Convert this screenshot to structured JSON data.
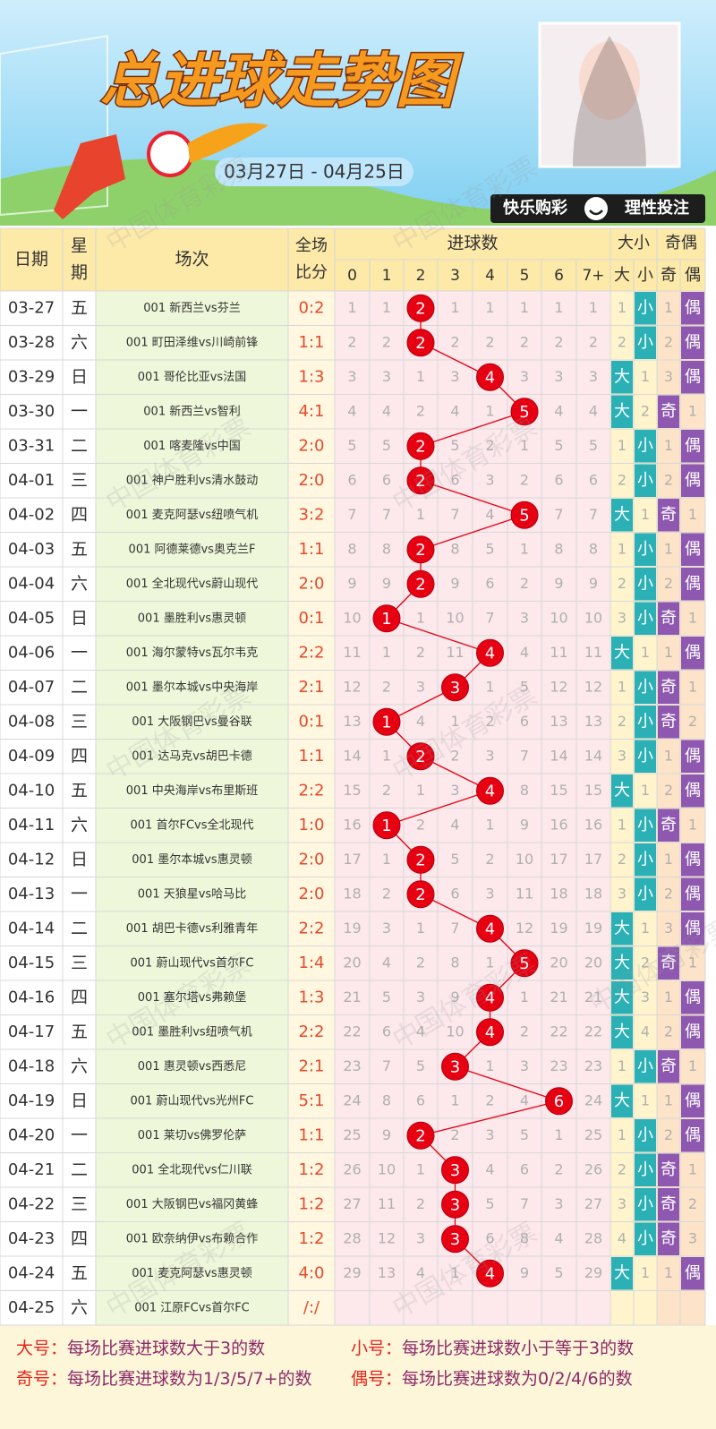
{
  "header": {
    "title": "总进球走势图",
    "date_range": "03月27日 - 04月25日",
    "slogan_left": "快乐购彩",
    "slogan_right": "理性投注",
    "watermark": "中国体育彩票"
  },
  "table": {
    "columns": {
      "date": "日期",
      "weekday": [
        "星",
        "期"
      ],
      "match": "场次",
      "score": [
        "全场",
        "比分"
      ],
      "goals": "进球数",
      "goal_counts": [
        "0",
        "1",
        "2",
        "3",
        "4",
        "5",
        "6",
        "7+"
      ],
      "big_small": "大小",
      "odd_even": "奇偶",
      "big_small_sub": [
        "大",
        "小"
      ],
      "odd_even_sub": [
        "奇",
        "偶"
      ]
    },
    "rows": [
      {
        "date": "03-27",
        "weekday": "五",
        "match": "001 新西兰vs芬兰",
        "score": "0:2",
        "cells": [
          "1",
          "1",
          "2",
          "1",
          "1",
          "1",
          "1",
          "1",
          "1",
          "小",
          "1",
          "偶"
        ]
      },
      {
        "date": "03-28",
        "weekday": "六",
        "match": "001 町田泽维vs川崎前锋",
        "score": "1:1",
        "cells": [
          "2",
          "2",
          "2",
          "2",
          "2",
          "2",
          "2",
          "2",
          "2",
          "小",
          "2",
          "偶"
        ]
      },
      {
        "date": "03-29",
        "weekday": "日",
        "match": "001 哥伦比亚vs法国",
        "score": "1:3",
        "cells": [
          "3",
          "3",
          "1",
          "3",
          "4",
          "3",
          "3",
          "3",
          "大",
          "1",
          "3",
          "偶"
        ]
      },
      {
        "date": "03-30",
        "weekday": "一",
        "match": "001 新西兰vs智利",
        "score": "4:1",
        "cells": [
          "4",
          "4",
          "2",
          "4",
          "1",
          "5",
          "4",
          "4",
          "大",
          "2",
          "奇",
          "1"
        ]
      },
      {
        "date": "03-31",
        "weekday": "二",
        "match": "001 喀麦隆vs中国",
        "score": "2:0",
        "cells": [
          "5",
          "5",
          "2",
          "5",
          "2",
          "1",
          "5",
          "5",
          "1",
          "小",
          "1",
          "偶"
        ]
      },
      {
        "date": "04-01",
        "weekday": "三",
        "match": "001 神户胜利vs清水鼓动",
        "score": "2:0",
        "cells": [
          "6",
          "6",
          "2",
          "6",
          "3",
          "2",
          "6",
          "6",
          "2",
          "小",
          "2",
          "偶"
        ]
      },
      {
        "date": "04-02",
        "weekday": "四",
        "match": "001 麦克阿瑟vs纽喷气机",
        "score": "3:2",
        "cells": [
          "7",
          "7",
          "1",
          "7",
          "4",
          "5",
          "7",
          "7",
          "大",
          "1",
          "奇",
          "1"
        ]
      },
      {
        "date": "04-03",
        "weekday": "五",
        "match": "001 阿德莱德vs奥克兰F",
        "score": "1:1",
        "cells": [
          "8",
          "8",
          "2",
          "8",
          "5",
          "1",
          "8",
          "8",
          "1",
          "小",
          "1",
          "偶"
        ]
      },
      {
        "date": "04-04",
        "weekday": "六",
        "match": "001 全北现代vs蔚山现代",
        "score": "2:0",
        "cells": [
          "9",
          "9",
          "2",
          "9",
          "6",
          "2",
          "9",
          "9",
          "2",
          "小",
          "2",
          "偶"
        ]
      },
      {
        "date": "04-05",
        "weekday": "日",
        "match": "001 墨胜利vs惠灵顿",
        "score": "0:1",
        "cells": [
          "10",
          "1",
          "1",
          "10",
          "7",
          "3",
          "10",
          "10",
          "3",
          "小",
          "奇",
          "1"
        ]
      },
      {
        "date": "04-06",
        "weekday": "一",
        "match": "001 海尔蒙特vs瓦尔韦克",
        "score": "2:2",
        "cells": [
          "11",
          "1",
          "2",
          "11",
          "4",
          "4",
          "11",
          "11",
          "大",
          "1",
          "1",
          "偶"
        ]
      },
      {
        "date": "04-07",
        "weekday": "二",
        "match": "001 墨尔本城vs中央海岸",
        "score": "2:1",
        "cells": [
          "12",
          "2",
          "3",
          "3",
          "1",
          "5",
          "12",
          "12",
          "1",
          "小",
          "奇",
          "1"
        ]
      },
      {
        "date": "04-08",
        "weekday": "三",
        "match": "001 大阪钢巴vs曼谷联",
        "score": "0:1",
        "cells": [
          "13",
          "1",
          "4",
          "1",
          "2",
          "6",
          "13",
          "13",
          "2",
          "小",
          "奇",
          "2"
        ]
      },
      {
        "date": "04-09",
        "weekday": "四",
        "match": "001 达马克vs胡巴卡德",
        "score": "1:1",
        "cells": [
          "14",
          "1",
          "2",
          "2",
          "3",
          "7",
          "14",
          "14",
          "3",
          "小",
          "1",
          "偶"
        ]
      },
      {
        "date": "04-10",
        "weekday": "五",
        "match": "001 中央海岸vs布里斯班",
        "score": "2:2",
        "cells": [
          "15",
          "2",
          "1",
          "3",
          "4",
          "8",
          "15",
          "15",
          "大",
          "1",
          "2",
          "偶"
        ]
      },
      {
        "date": "04-11",
        "weekday": "六",
        "match": "001 首尔FCvs全北现代",
        "score": "1:0",
        "cells": [
          "16",
          "1",
          "2",
          "4",
          "1",
          "9",
          "16",
          "16",
          "1",
          "小",
          "奇",
          "1"
        ]
      },
      {
        "date": "04-12",
        "weekday": "日",
        "match": "001 墨尔本城vs惠灵顿",
        "score": "2:0",
        "cells": [
          "17",
          "1",
          "2",
          "5",
          "2",
          "10",
          "17",
          "17",
          "2",
          "小",
          "1",
          "偶"
        ]
      },
      {
        "date": "04-13",
        "weekday": "一",
        "match": "001 天狼星vs哈马比",
        "score": "2:0",
        "cells": [
          "18",
          "2",
          "2",
          "6",
          "3",
          "11",
          "18",
          "18",
          "3",
          "小",
          "2",
          "偶"
        ]
      },
      {
        "date": "04-14",
        "weekday": "二",
        "match": "001 胡巴卡德vs利雅青年",
        "score": "2:2",
        "cells": [
          "19",
          "3",
          "1",
          "7",
          "4",
          "12",
          "19",
          "19",
          "大",
          "1",
          "3",
          "偶"
        ]
      },
      {
        "date": "04-15",
        "weekday": "三",
        "match": "001 蔚山现代vs首尔FC",
        "score": "1:4",
        "cells": [
          "20",
          "4",
          "2",
          "8",
          "1",
          "5",
          "20",
          "20",
          "大",
          "2",
          "奇",
          "1"
        ]
      },
      {
        "date": "04-16",
        "weekday": "四",
        "match": "001 塞尔塔vs弗赖堡",
        "score": "1:3",
        "cells": [
          "21",
          "5",
          "3",
          "9",
          "4",
          "1",
          "21",
          "21",
          "大",
          "3",
          "1",
          "偶"
        ]
      },
      {
        "date": "04-17",
        "weekday": "五",
        "match": "001 墨胜利vs纽喷气机",
        "score": "2:2",
        "cells": [
          "22",
          "6",
          "4",
          "10",
          "4",
          "2",
          "22",
          "22",
          "大",
          "4",
          "2",
          "偶"
        ]
      },
      {
        "date": "04-18",
        "weekday": "六",
        "match": "001 惠灵顿vs西悉尼",
        "score": "2:1",
        "cells": [
          "23",
          "7",
          "5",
          "3",
          "1",
          "3",
          "23",
          "23",
          "1",
          "小",
          "奇",
          "1"
        ]
      },
      {
        "date": "04-19",
        "weekday": "日",
        "match": "001 蔚山现代vs光州FC",
        "score": "5:1",
        "cells": [
          "24",
          "8",
          "6",
          "1",
          "2",
          "4",
          "6",
          "24",
          "大",
          "1",
          "1",
          "偶"
        ]
      },
      {
        "date": "04-20",
        "weekday": "一",
        "match": "001 莱切vs佛罗伦萨",
        "score": "1:1",
        "cells": [
          "25",
          "9",
          "2",
          "2",
          "3",
          "5",
          "1",
          "25",
          "1",
          "小",
          "2",
          "偶"
        ]
      },
      {
        "date": "04-21",
        "weekday": "二",
        "match": "001 全北现代vs仁川联",
        "score": "1:2",
        "cells": [
          "26",
          "10",
          "1",
          "3",
          "4",
          "6",
          "2",
          "26",
          "2",
          "小",
          "奇",
          "1"
        ]
      },
      {
        "date": "04-22",
        "weekday": "三",
        "match": "001 大阪钢巴vs福冈黄蜂",
        "score": "1:2",
        "cells": [
          "27",
          "11",
          "2",
          "3",
          "5",
          "7",
          "3",
          "27",
          "3",
          "小",
          "奇",
          "2"
        ]
      },
      {
        "date": "04-23",
        "weekday": "四",
        "match": "001 欧奈纳伊vs布赖合作",
        "score": "1:2",
        "cells": [
          "28",
          "12",
          "3",
          "3",
          "6",
          "8",
          "4",
          "28",
          "4",
          "小",
          "奇",
          "3"
        ]
      },
      {
        "date": "04-24",
        "weekday": "五",
        "match": "001 麦克阿瑟vs惠灵顿",
        "score": "4:0",
        "cells": [
          "29",
          "13",
          "4",
          "1",
          "4",
          "9",
          "5",
          "29",
          "大",
          "1",
          "1",
          "偶"
        ]
      },
      {
        "date": "04-25",
        "weekday": "六",
        "match": "001 江原FCvs首尔FC",
        "score": "/:/"
      }
    ]
  },
  "legend": [
    {
      "label": "大号：",
      "text": "每场比赛进球数大于3的数"
    },
    {
      "label": "小号：",
      "text": "每场比赛进球数小于等于3的数"
    },
    {
      "label": "奇号：",
      "text": "每场比赛进球数为1/3/5/7+的数"
    },
    {
      "label": "偶号：",
      "text": "每场比赛进球数为0/2/4/6的数"
    }
  ]
}
